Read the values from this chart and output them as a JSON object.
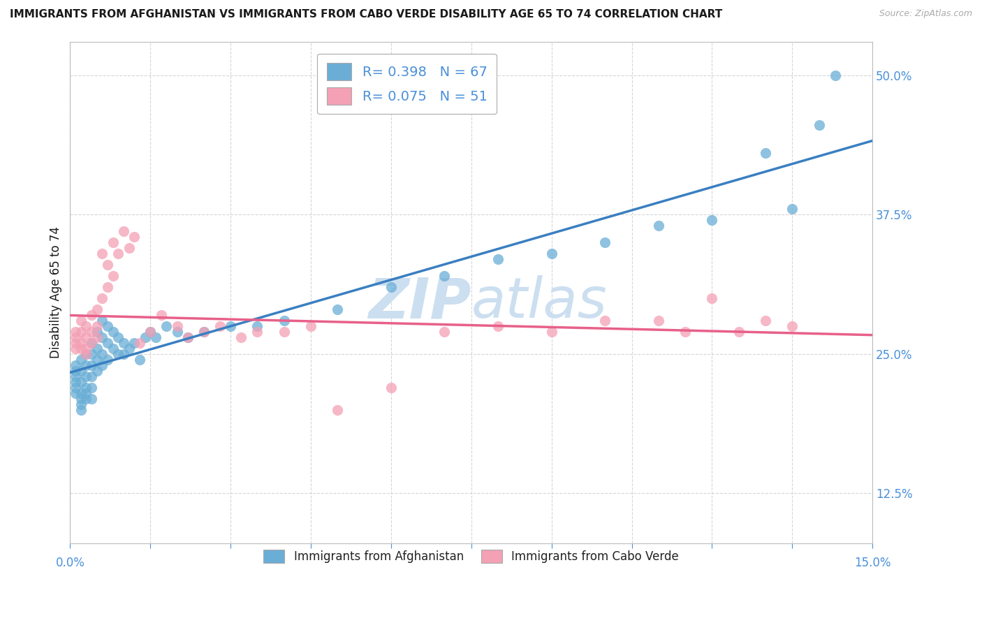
{
  "title": "IMMIGRANTS FROM AFGHANISTAN VS IMMIGRANTS FROM CABO VERDE DISABILITY AGE 65 TO 74 CORRELATION CHART",
  "source": "Source: ZipAtlas.com",
  "ylabel": "Disability Age 65 to 74",
  "legend_label_af": "Immigrants from Afghanistan",
  "legend_label_cv": "Immigrants from Cabo Verde",
  "R_af": 0.398,
  "N_af": 67,
  "R_cv": 0.075,
  "N_cv": 51,
  "color_af": "#6aaed6",
  "color_cv": "#f4a0b5",
  "color_af_line": "#3a7fc1",
  "color_cv_line": "#e8608a",
  "title_color": "#1a1a1a",
  "source_color": "#aaaaaa",
  "axis_label_color": "#4a90d9",
  "watermark_color": "#ccdff0",
  "xmin": 0.0,
  "xmax": 0.15,
  "ymin": 0.08,
  "ymax": 0.53,
  "yticks": [
    0.125,
    0.25,
    0.375,
    0.5
  ],
  "af_x": [
    0.001,
    0.001,
    0.001,
    0.001,
    0.001,
    0.001,
    0.002,
    0.002,
    0.002,
    0.002,
    0.002,
    0.002,
    0.002,
    0.003,
    0.003,
    0.003,
    0.003,
    0.003,
    0.003,
    0.004,
    0.004,
    0.004,
    0.004,
    0.004,
    0.004,
    0.005,
    0.005,
    0.005,
    0.005,
    0.006,
    0.006,
    0.006,
    0.006,
    0.007,
    0.007,
    0.007,
    0.008,
    0.008,
    0.009,
    0.009,
    0.01,
    0.01,
    0.011,
    0.012,
    0.013,
    0.014,
    0.015,
    0.016,
    0.018,
    0.02,
    0.022,
    0.025,
    0.03,
    0.035,
    0.04,
    0.05,
    0.06,
    0.07,
    0.08,
    0.09,
    0.1,
    0.11,
    0.12,
    0.13,
    0.135,
    0.14,
    0.143
  ],
  "af_y": [
    0.24,
    0.235,
    0.23,
    0.225,
    0.22,
    0.215,
    0.245,
    0.235,
    0.225,
    0.215,
    0.21,
    0.205,
    0.2,
    0.25,
    0.24,
    0.23,
    0.22,
    0.215,
    0.21,
    0.26,
    0.25,
    0.24,
    0.23,
    0.22,
    0.21,
    0.27,
    0.255,
    0.245,
    0.235,
    0.28,
    0.265,
    0.25,
    0.24,
    0.275,
    0.26,
    0.245,
    0.27,
    0.255,
    0.265,
    0.25,
    0.26,
    0.25,
    0.255,
    0.26,
    0.245,
    0.265,
    0.27,
    0.265,
    0.275,
    0.27,
    0.265,
    0.27,
    0.275,
    0.275,
    0.28,
    0.29,
    0.31,
    0.32,
    0.335,
    0.34,
    0.35,
    0.365,
    0.37,
    0.43,
    0.38,
    0.455,
    0.5
  ],
  "cv_x": [
    0.001,
    0.001,
    0.001,
    0.001,
    0.002,
    0.002,
    0.002,
    0.002,
    0.003,
    0.003,
    0.003,
    0.003,
    0.004,
    0.004,
    0.004,
    0.005,
    0.005,
    0.005,
    0.006,
    0.006,
    0.007,
    0.007,
    0.008,
    0.008,
    0.009,
    0.01,
    0.011,
    0.012,
    0.013,
    0.015,
    0.017,
    0.02,
    0.022,
    0.025,
    0.028,
    0.032,
    0.035,
    0.04,
    0.045,
    0.05,
    0.06,
    0.07,
    0.08,
    0.09,
    0.1,
    0.11,
    0.115,
    0.12,
    0.125,
    0.13,
    0.135
  ],
  "cv_y": [
    0.27,
    0.265,
    0.26,
    0.255,
    0.28,
    0.27,
    0.26,
    0.255,
    0.275,
    0.265,
    0.255,
    0.25,
    0.285,
    0.27,
    0.26,
    0.29,
    0.275,
    0.265,
    0.34,
    0.3,
    0.33,
    0.31,
    0.35,
    0.32,
    0.34,
    0.36,
    0.345,
    0.355,
    0.26,
    0.27,
    0.285,
    0.275,
    0.265,
    0.27,
    0.275,
    0.265,
    0.27,
    0.27,
    0.275,
    0.2,
    0.22,
    0.27,
    0.275,
    0.27,
    0.28,
    0.28,
    0.27,
    0.3,
    0.27,
    0.28,
    0.275
  ]
}
